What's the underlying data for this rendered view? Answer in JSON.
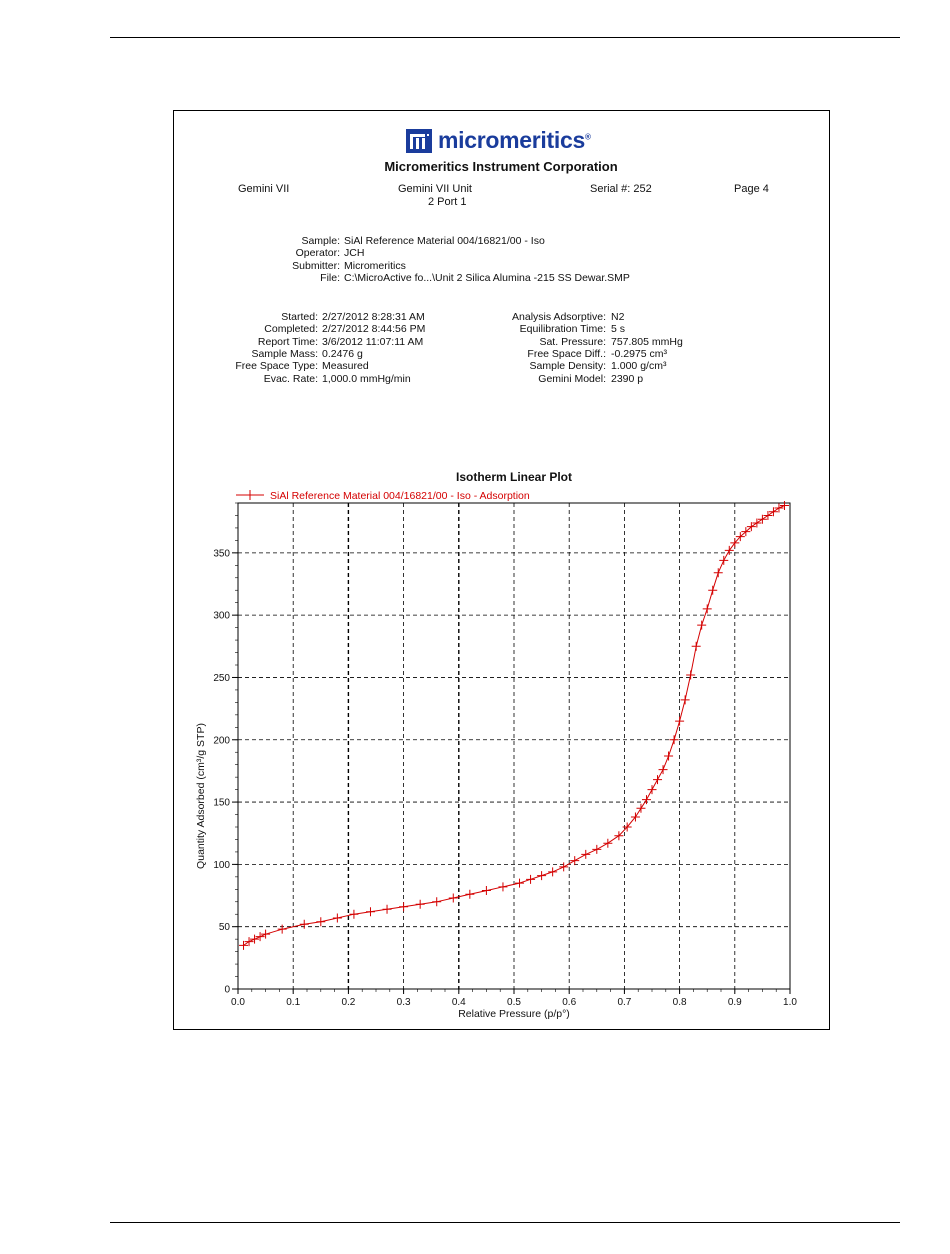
{
  "header": {
    "company_logo": "micromeritics",
    "company_name": "Micromeritics Instrument Corporation",
    "instrument": "Gemini VII",
    "unit_line1": "Gemini VII    Unit",
    "unit_line2": "2 Port 1",
    "serial": "Serial #: 252",
    "page": "Page 4"
  },
  "sample_info": [
    {
      "label": "Sample:",
      "value": "SiAl Reference Material 004/16821/00 - Iso"
    },
    {
      "label": "Operator:",
      "value": "JCH"
    },
    {
      "label": "Submitter:",
      "value": "Micromeritics"
    },
    {
      "label": "File:",
      "value": "C:\\MicroActive fo...\\Unit 2 Silica Alumina -215 SS Dewar.SMP"
    }
  ],
  "run_info_left": [
    {
      "label": "Started:",
      "value": "2/27/2012 8:28:31 AM"
    },
    {
      "label": "Completed:",
      "value": "2/27/2012 8:44:56 PM"
    },
    {
      "label": "Report Time:",
      "value": "3/6/2012 11:07:11 AM"
    },
    {
      "label": "Sample Mass:",
      "value": "0.2476 g"
    },
    {
      "label": "Free Space Type:",
      "value": "Measured"
    },
    {
      "label": "Evac. Rate:",
      "value": "1,000.0 mmHg/min"
    }
  ],
  "run_info_right": [
    {
      "label": "Analysis Adsorptive:",
      "value": "N2"
    },
    {
      "label": "Equilibration Time:",
      "value": "5 s"
    },
    {
      "label": "Sat. Pressure:",
      "value": "757.805 mmHg"
    },
    {
      "label": "Free Space Diff.:",
      "value": "-0.2975 cm³"
    },
    {
      "label": "Sample Density:",
      "value": "1.000 g/cm³"
    },
    {
      "label": "Gemini Model:",
      "value": "2390 p"
    }
  ],
  "chart_data": {
    "type": "line",
    "title": "Isotherm Linear Plot",
    "xlabel": "Relative Pressure (p/p°)",
    "ylabel": "Quantity Adsorbed (cm³/g STP)",
    "xlim": [
      0,
      1.0
    ],
    "ylim": [
      0,
      390
    ],
    "xticks": [
      "0.0",
      "0.1",
      "0.2",
      "0.3",
      "0.4",
      "0.5",
      "0.6",
      "0.7",
      "0.8",
      "0.9",
      "1.0"
    ],
    "yticks": [
      "0",
      "50",
      "100",
      "150",
      "200",
      "250",
      "300",
      "350"
    ],
    "grid": true,
    "legend_position": "top-left",
    "color": "#d40000",
    "series": [
      {
        "name": "SiAl Reference Material 004/16821/00 - Iso - Adsorption",
        "marker": "plus",
        "x": [
          0.01,
          0.02,
          0.03,
          0.04,
          0.05,
          0.08,
          0.12,
          0.15,
          0.18,
          0.21,
          0.24,
          0.27,
          0.3,
          0.33,
          0.36,
          0.39,
          0.42,
          0.45,
          0.48,
          0.51,
          0.53,
          0.55,
          0.57,
          0.59,
          0.61,
          0.63,
          0.65,
          0.67,
          0.69,
          0.705,
          0.72,
          0.73,
          0.74,
          0.75,
          0.76,
          0.77,
          0.78,
          0.79,
          0.8,
          0.81,
          0.82,
          0.83,
          0.84,
          0.85,
          0.86,
          0.87,
          0.88,
          0.89,
          0.9,
          0.91,
          0.92,
          0.93,
          0.94,
          0.95,
          0.96,
          0.97,
          0.98,
          0.99
        ],
        "y": [
          35,
          38,
          40,
          42,
          44,
          48,
          52,
          54,
          57,
          60,
          62,
          64,
          66,
          68,
          70,
          73,
          76,
          79,
          82,
          85,
          88,
          91,
          94,
          98,
          103,
          108,
          112,
          117,
          123,
          130,
          138,
          145,
          152,
          160,
          168,
          176,
          187,
          200,
          215,
          232,
          252,
          275,
          292,
          305,
          320,
          334,
          344,
          352,
          358,
          363,
          367,
          371,
          374,
          377,
          380,
          383,
          386,
          388
        ]
      }
    ]
  }
}
